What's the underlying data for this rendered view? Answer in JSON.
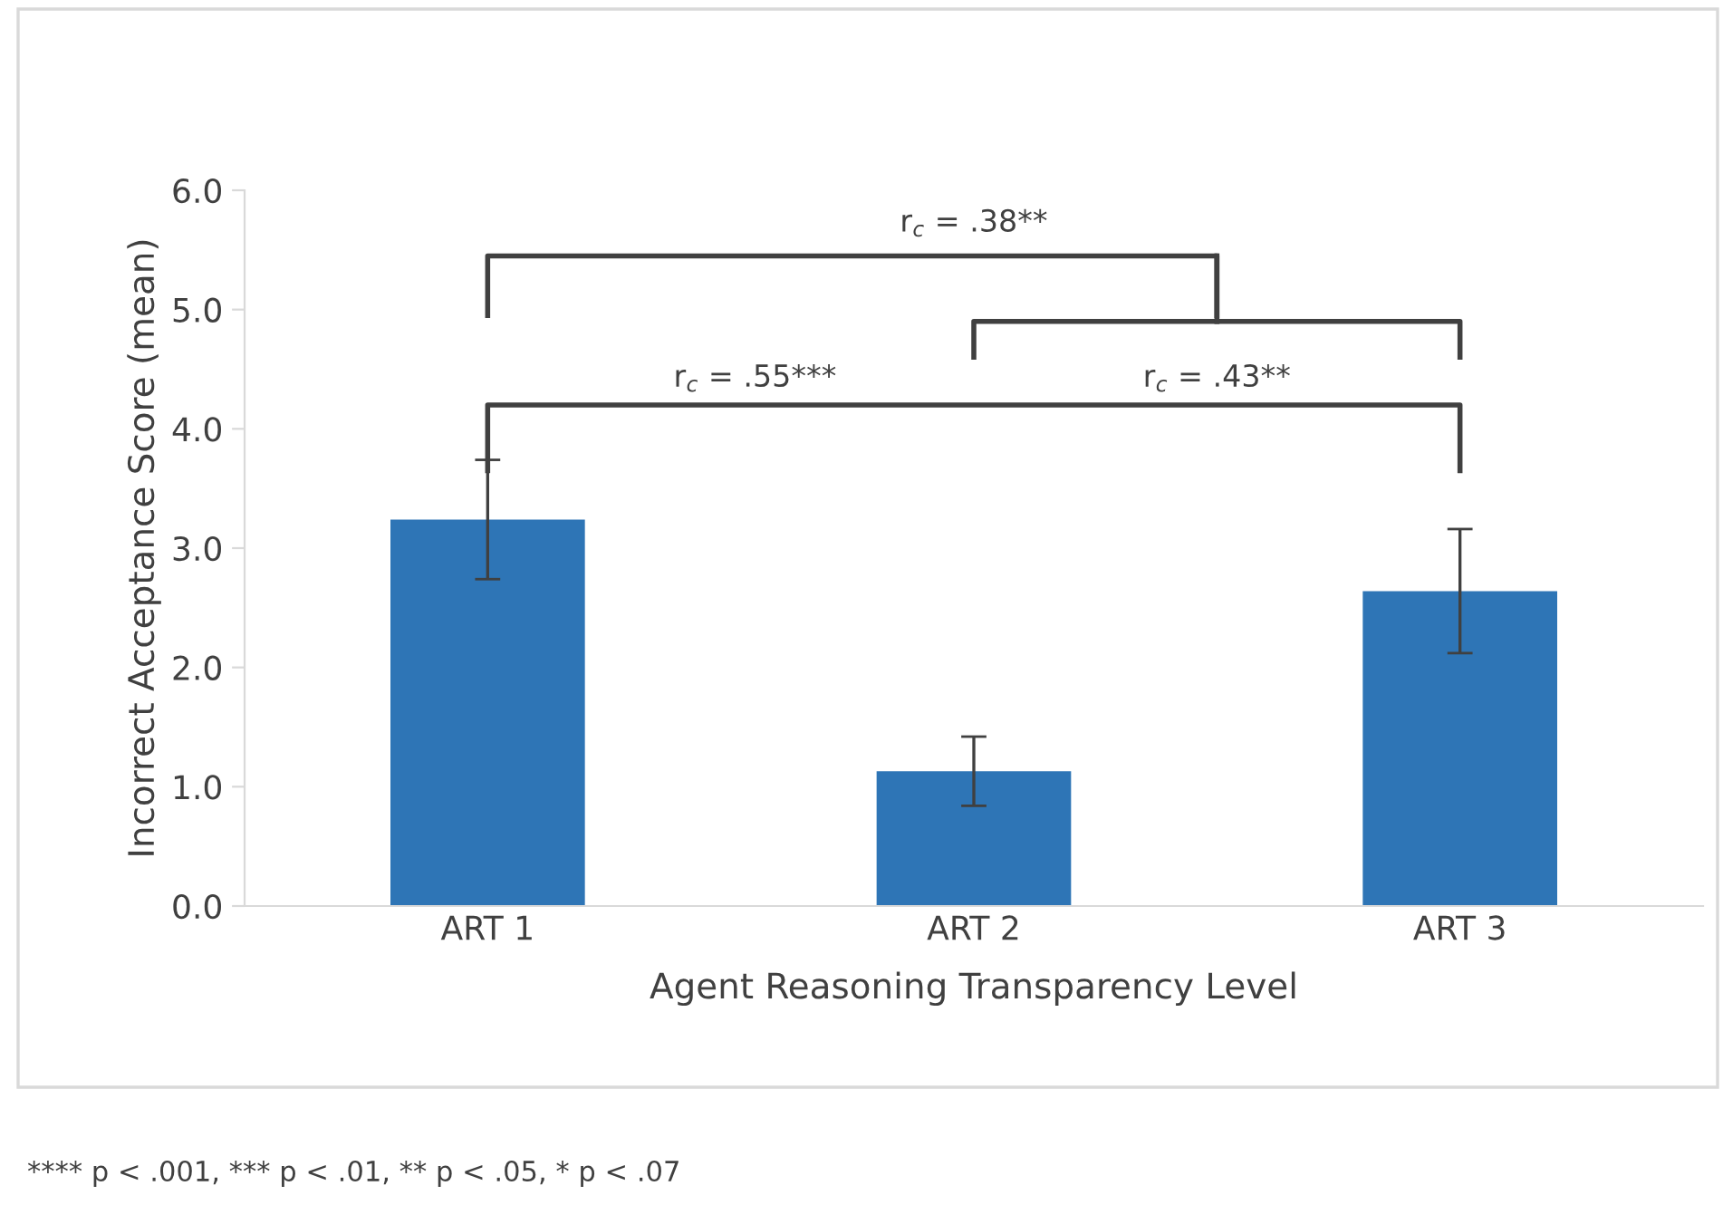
{
  "chart_data": {
    "type": "bar",
    "xlabel": "Agent Reasoning Transparency Level",
    "ylabel": "Incorrect Acceptance Score (mean)",
    "categories": [
      "ART 1",
      "ART 2",
      "ART 3"
    ],
    "values": [
      3.24,
      1.13,
      2.64
    ],
    "errors": [
      0.5,
      0.29,
      0.52
    ],
    "color": "#2e75b6",
    "ylim": [
      0,
      6
    ],
    "yticks": [
      {
        "value": 0,
        "label": "0.0"
      },
      {
        "value": 1,
        "label": "1.0"
      },
      {
        "value": 2,
        "label": "2.0"
      },
      {
        "value": 3,
        "label": "3.0"
      },
      {
        "value": 4,
        "label": "4.0"
      },
      {
        "value": 5,
        "label": "5.0"
      },
      {
        "value": 6,
        "label": "6.0"
      }
    ],
    "grid": false,
    "annotations": [
      "r$_{c}$ = .38**",
      "r$_{c}$ = .55***",
      "r$_{c}$ = .43**",
      "**** p < .001, *** p < .01, ** p < .05, * p < .07"
    ]
  }
}
